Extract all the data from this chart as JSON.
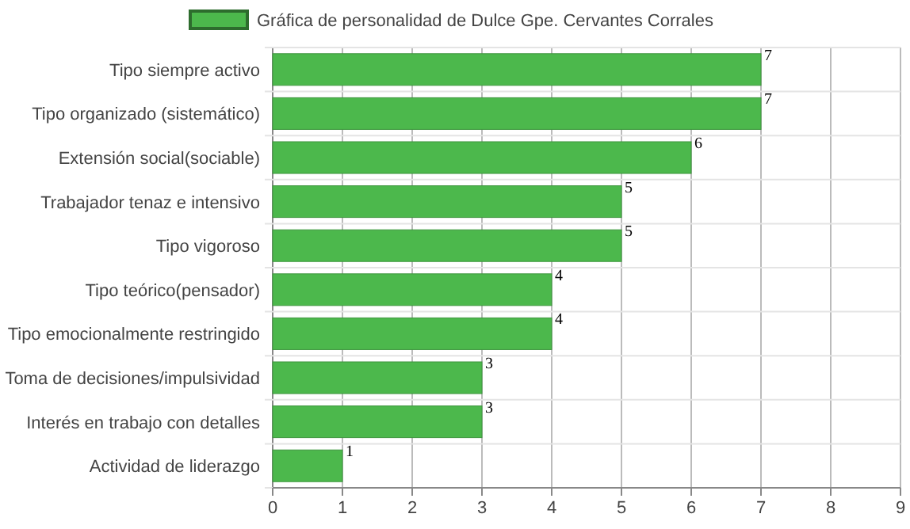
{
  "chart_data": {
    "type": "bar",
    "orientation": "horizontal",
    "categories": [
      "Tipo siempre activo",
      "Tipo organizado (sistemático)",
      "Extensión social(sociable)",
      "Trabajador tenaz e intensivo",
      "Tipo vigoroso",
      "Tipo teórico(pensador)",
      "Tipo emocionalmente restringido",
      "Toma de decisiones/impulsividad",
      "Interés en trabajo con detalles",
      "Actividad de liderazgo"
    ],
    "series": [
      {
        "name": "Gráfica de personalidad de Dulce Gpe. Cervantes Corrales",
        "color": "#4cb84c",
        "values": [
          7,
          7,
          6,
          5,
          5,
          4,
          4,
          3,
          3,
          1
        ]
      }
    ],
    "xlim": [
      0,
      9
    ],
    "xticks": [
      0,
      1,
      2,
      3,
      4,
      5,
      6,
      7,
      8,
      9
    ],
    "grid": true,
    "legend": "top",
    "data_labels": true
  }
}
